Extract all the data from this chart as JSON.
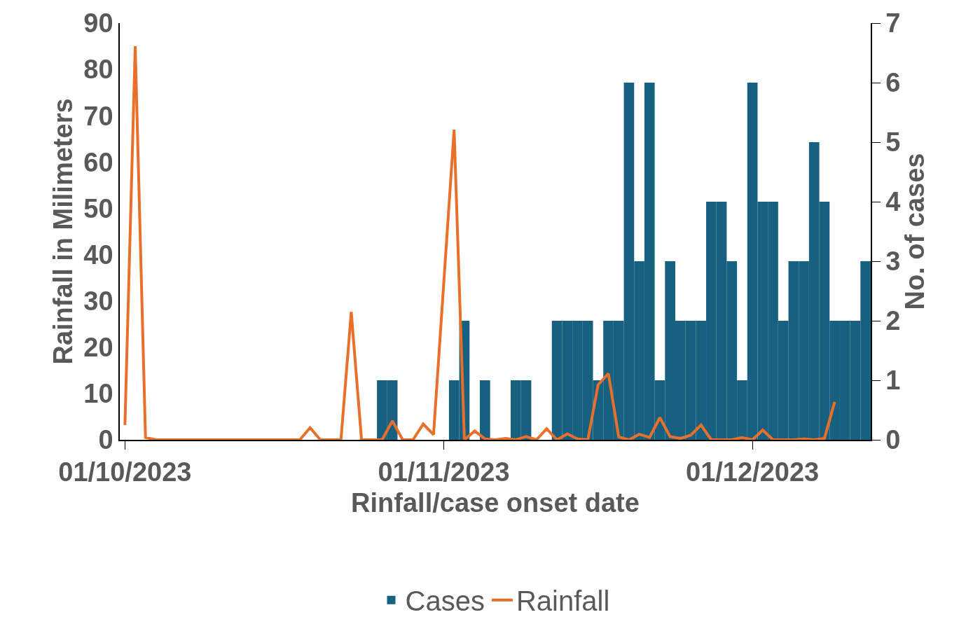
{
  "chart_data": {
    "type": "bar",
    "xlabel": "Rinfall/case onset date",
    "ylabel": "Rainfall in Milimeters",
    "y2label": "No. of cases",
    "xlim": [
      "2023-09-30T12:00",
      "2023-12-12T12:00"
    ],
    "xticks": [
      {
        "value": "2023-10-01",
        "label": "01/10/2023"
      },
      {
        "value": "2023-11-01",
        "label": "01/11/2023"
      },
      {
        "value": "2023-12-01",
        "label": "01/12/2023"
      }
    ],
    "ylim": [
      0,
      90
    ],
    "yticks": [
      0,
      10,
      20,
      30,
      40,
      50,
      60,
      70,
      80,
      90
    ],
    "y2lim": [
      0,
      7
    ],
    "y2ticks": [
      0,
      1,
      2,
      3,
      4,
      5,
      6,
      7
    ],
    "legend": "bottom",
    "series": [
      {
        "name": "Cases",
        "axis": "y2",
        "color": "#17607f",
        "x": [
          "2023-10-26",
          "2023-10-27",
          "2023-11-02",
          "2023-11-03",
          "2023-11-05",
          "2023-11-08",
          "2023-11-09",
          "2023-11-12",
          "2023-11-13",
          "2023-11-14",
          "2023-11-15",
          "2023-11-16",
          "2023-11-17",
          "2023-11-18",
          "2023-11-19",
          "2023-11-20",
          "2023-11-21",
          "2023-11-22",
          "2023-11-23",
          "2023-11-24",
          "2023-11-25",
          "2023-11-26",
          "2023-11-27",
          "2023-11-28",
          "2023-11-29",
          "2023-11-30",
          "2023-12-01",
          "2023-12-02",
          "2023-12-03",
          "2023-12-04",
          "2023-12-05",
          "2023-12-06",
          "2023-12-07",
          "2023-12-08",
          "2023-12-09",
          "2023-12-10",
          "2023-12-11",
          "2023-12-12"
        ],
        "values": [
          1,
          1,
          1,
          2,
          1,
          1,
          1,
          2,
          2,
          2,
          2,
          1,
          2,
          2,
          6,
          3,
          6,
          1,
          3,
          2,
          2,
          2,
          4,
          4,
          3,
          1,
          6,
          4,
          4,
          2,
          3,
          3,
          5,
          4,
          2,
          2,
          2,
          3
        ]
      },
      {
        "name": "Rainfall",
        "type": "line",
        "axis": "y",
        "color": "#e8702a",
        "x": [
          "2023-10-01",
          "2023-10-02",
          "2023-10-03",
          "2023-10-04",
          "2023-10-05",
          "2023-10-06",
          "2023-10-07",
          "2023-10-08",
          "2023-10-09",
          "2023-10-10",
          "2023-10-11",
          "2023-10-12",
          "2023-10-13",
          "2023-10-14",
          "2023-10-15",
          "2023-10-16",
          "2023-10-17",
          "2023-10-18",
          "2023-10-19",
          "2023-10-20",
          "2023-10-21",
          "2023-10-22",
          "2023-10-23",
          "2023-10-24",
          "2023-10-25",
          "2023-10-26",
          "2023-10-27",
          "2023-10-28",
          "2023-10-29",
          "2023-10-30",
          "2023-10-31",
          "2023-11-02",
          "2023-11-03",
          "2023-11-04",
          "2023-11-05",
          "2023-11-06",
          "2023-11-07",
          "2023-11-08",
          "2023-11-09",
          "2023-11-10",
          "2023-11-11",
          "2023-11-12",
          "2023-11-13",
          "2023-11-14",
          "2023-11-15",
          "2023-11-16",
          "2023-11-17",
          "2023-11-18",
          "2023-11-19",
          "2023-11-20",
          "2023-11-21",
          "2023-11-22",
          "2023-11-23",
          "2023-11-24",
          "2023-11-25",
          "2023-11-26",
          "2023-11-27",
          "2023-11-28",
          "2023-11-29",
          "2023-11-30",
          "2023-12-01",
          "2023-12-02",
          "2023-12-03",
          "2023-12-04",
          "2023-12-05",
          "2023-12-06",
          "2023-12-07",
          "2023-12-08",
          "2023-12-09"
        ],
        "values": [
          3.2,
          85,
          0.5,
          0,
          0,
          0,
          0,
          0,
          0,
          0,
          0,
          0,
          0,
          0,
          0,
          0,
          0,
          0,
          2.6,
          0,
          0,
          0,
          27.6,
          0,
          0,
          0,
          4.1,
          0,
          0,
          3.4,
          1.1,
          67,
          0,
          1.9,
          0.2,
          0,
          0.3,
          0,
          0.7,
          0,
          2.4,
          0,
          1.3,
          0.2,
          0,
          11.9,
          14.3,
          0.6,
          0,
          1.2,
          0.5,
          4.8,
          0.7,
          0.3,
          1.0,
          3.2,
          0,
          0,
          0,
          0.5,
          0,
          2.1,
          0,
          0,
          0,
          0.2,
          0,
          0.3,
          8.2
        ]
      }
    ]
  }
}
